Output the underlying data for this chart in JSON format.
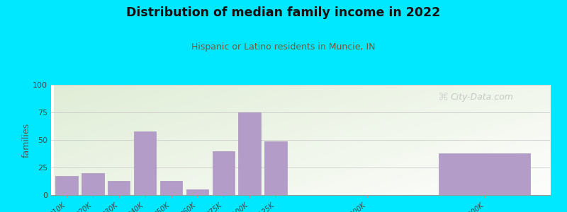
{
  "title": "Distribution of median family income in 2022",
  "subtitle": "Hispanic or Latino residents in Muncie, IN",
  "ylabel": "families",
  "background_outer": "#00e8ff",
  "bar_color": "#b39cc8",
  "bar_edge_color": "#a08ab8",
  "categories": [
    "$10K",
    "$20K",
    "$30K",
    "$40K",
    "$50K",
    "$60K",
    "$75K",
    "$100K",
    "$125K",
    "$200K",
    "> $200K"
  ],
  "values": [
    17,
    20,
    13,
    58,
    13,
    5,
    40,
    75,
    49,
    0,
    38
  ],
  "ylim": [
    0,
    100
  ],
  "yticks": [
    0,
    25,
    50,
    75,
    100
  ],
  "watermark": "City-Data.com",
  "title_color": "#111111",
  "subtitle_color": "#7a5533",
  "ylabel_color": "#555555"
}
